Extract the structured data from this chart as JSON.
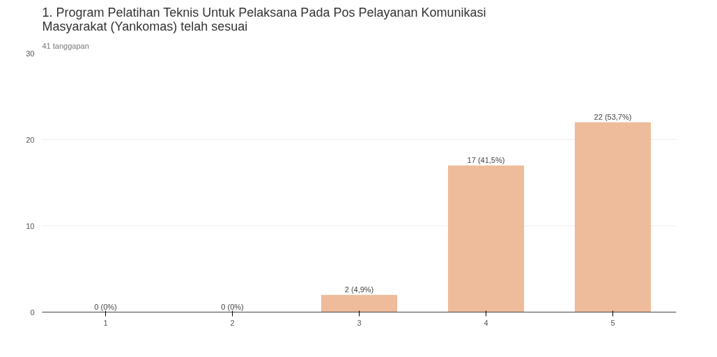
{
  "chart_data": {
    "type": "bar",
    "title": "1. Program Pelatihan Teknis Untuk Pelaksana Pada Pos Pelayanan Komunikasi Masyarakat (Yankomas) telah sesuai",
    "subtitle": "41 tanggapan",
    "categories": [
      "1",
      "2",
      "3",
      "4",
      "5"
    ],
    "values": [
      0,
      0,
      2,
      17,
      22
    ],
    "value_labels": [
      "0 (0%)",
      "0 (0%)",
      "2 (4,9%)",
      "17 (41,5%)",
      "22 (53,7%)"
    ],
    "color": "#eebc9a",
    "ylim": [
      0,
      30
    ],
    "yticks": [
      0,
      10,
      20,
      30
    ],
    "grid": "y"
  }
}
